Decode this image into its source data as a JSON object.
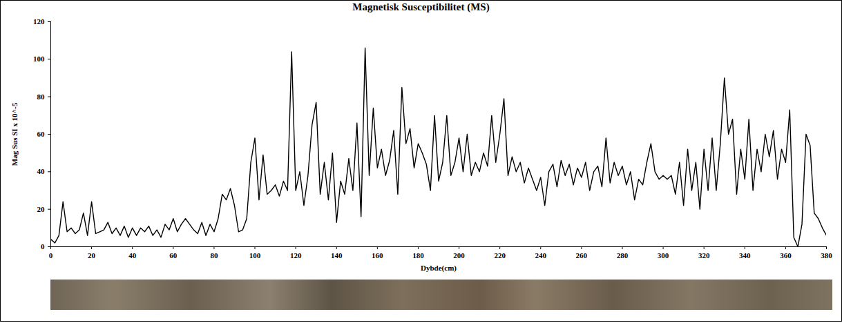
{
  "chart_data": {
    "type": "line",
    "title": "Magnetisk Susceptibilitet (MS)",
    "x_label": "Dybde(cm)",
    "y_label": "Mag Sus SI x 10^-5",
    "xlim": [
      0,
      380
    ],
    "xticks": [
      0,
      20,
      40,
      60,
      80,
      100,
      120,
      140,
      160,
      180,
      200,
      220,
      240,
      260,
      280,
      300,
      320,
      340,
      360,
      380
    ],
    "ylim": [
      0,
      120
    ],
    "yticks": [
      0,
      20,
      40,
      60,
      80,
      100,
      120
    ],
    "grid": false,
    "color": "#000000",
    "x": [
      0,
      2,
      4,
      6,
      8,
      10,
      12,
      14,
      16,
      18,
      20,
      22,
      24,
      26,
      28,
      30,
      32,
      34,
      36,
      38,
      40,
      42,
      44,
      46,
      48,
      50,
      52,
      54,
      56,
      58,
      60,
      62,
      64,
      66,
      68,
      70,
      72,
      74,
      76,
      78,
      80,
      82,
      84,
      86,
      88,
      90,
      92,
      94,
      96,
      98,
      100,
      102,
      104,
      106,
      108,
      110,
      112,
      114,
      116,
      118,
      120,
      122,
      124,
      126,
      128,
      130,
      132,
      134,
      136,
      138,
      140,
      142,
      144,
      146,
      148,
      150,
      152,
      154,
      156,
      158,
      160,
      162,
      164,
      166,
      168,
      170,
      172,
      174,
      176,
      178,
      180,
      182,
      184,
      186,
      188,
      190,
      192,
      194,
      196,
      198,
      200,
      202,
      204,
      206,
      208,
      210,
      212,
      214,
      216,
      218,
      220,
      222,
      224,
      226,
      228,
      230,
      232,
      234,
      236,
      238,
      240,
      242,
      244,
      246,
      248,
      250,
      252,
      254,
      256,
      258,
      260,
      262,
      264,
      266,
      268,
      270,
      272,
      274,
      276,
      278,
      280,
      282,
      284,
      286,
      288,
      290,
      292,
      294,
      296,
      298,
      300,
      302,
      304,
      306,
      308,
      310,
      312,
      314,
      316,
      318,
      320,
      322,
      324,
      326,
      328,
      330,
      332,
      334,
      336,
      338,
      340,
      342,
      344,
      346,
      348,
      350,
      352,
      354,
      356,
      358,
      360,
      362,
      364,
      366,
      368,
      370,
      372,
      374,
      376,
      378,
      380
    ],
    "values": [
      4,
      2,
      6,
      24,
      8,
      10,
      7,
      9,
      18,
      6,
      24,
      7,
      8,
      9,
      13,
      7,
      10,
      6,
      11,
      5,
      10,
      6,
      10,
      8,
      11,
      6,
      9,
      5,
      12,
      9,
      15,
      8,
      12,
      15,
      12,
      9,
      7,
      13,
      6,
      12,
      8,
      15,
      28,
      25,
      31,
      22,
      8,
      9,
      15,
      45,
      58,
      25,
      49,
      28,
      30,
      33,
      27,
      35,
      30,
      104,
      30,
      40,
      22,
      38,
      65,
      77,
      28,
      45,
      25,
      50,
      13,
      35,
      28,
      47,
      30,
      66,
      16,
      106,
      38,
      74,
      42,
      52,
      38,
      46,
      62,
      28,
      85,
      55,
      63,
      42,
      55,
      50,
      44,
      30,
      70,
      35,
      45,
      70,
      38,
      45,
      58,
      40,
      60,
      38,
      45,
      40,
      50,
      43,
      70,
      45,
      60,
      79,
      38,
      48,
      40,
      45,
      34,
      42,
      36,
      30,
      37,
      22,
      40,
      44,
      32,
      46,
      38,
      44,
      33,
      42,
      37,
      45,
      30,
      40,
      43,
      32,
      58,
      34,
      45,
      38,
      43,
      33,
      40,
      25,
      36,
      33,
      45,
      55,
      40,
      36,
      38,
      36,
      38,
      28,
      45,
      22,
      52,
      30,
      45,
      20,
      52,
      30,
      58,
      30,
      55,
      90,
      60,
      68,
      28,
      52,
      36,
      68,
      30,
      52,
      40,
      60,
      48,
      62,
      36,
      52,
      45,
      73,
      5,
      0,
      12,
      60,
      54,
      18,
      15,
      10,
      6
    ]
  }
}
